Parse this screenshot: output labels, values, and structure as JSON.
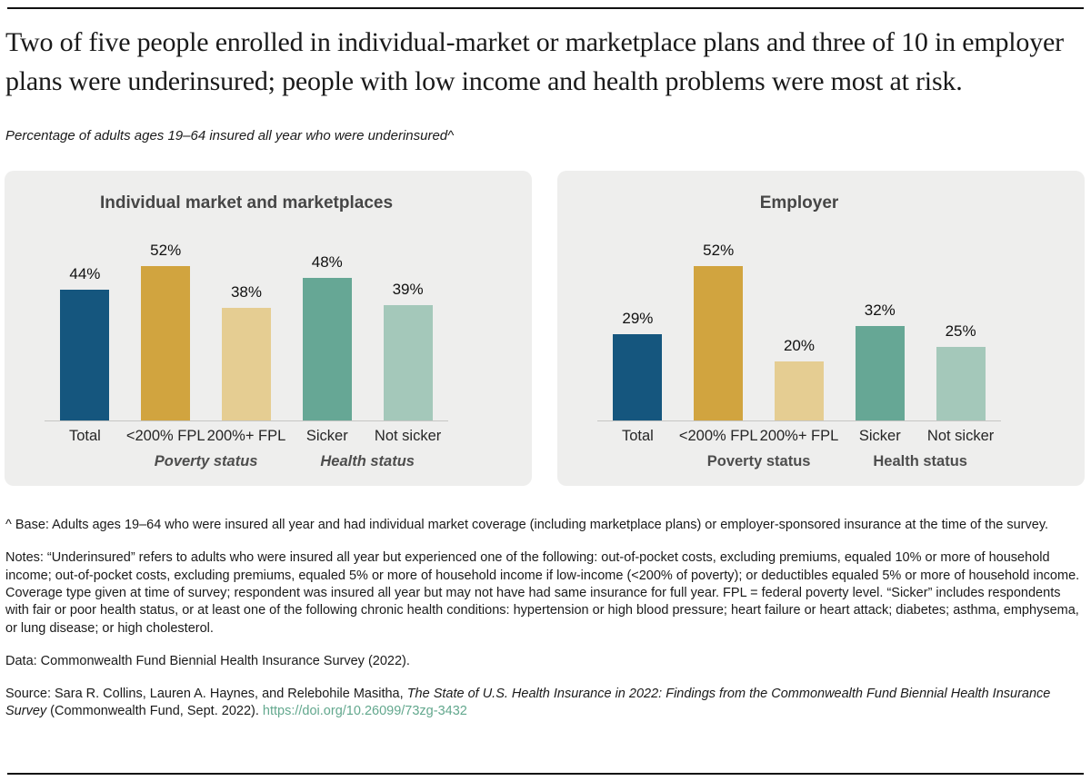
{
  "header": {
    "title": "Two of five people enrolled in individual-market or marketplace plans and three of 10 in employer plans were underinsured; people with low income and health problems were most at risk.",
    "subtitle": "Percentage of adults ages 19–64 insured all year who were underinsured^"
  },
  "colors": {
    "blue": "#15567E",
    "gold": "#D1A43F",
    "tan": "#E5CD92",
    "teal": "#66A795",
    "sage": "#A4C8BA",
    "panel_bg": "#EEEEED",
    "axis": "#C6C6C4",
    "link": "#63A88E",
    "rule": "#111111"
  },
  "chart_data": [
    {
      "type": "bar",
      "title": "Individual market and marketplaces",
      "categories": [
        "Total",
        "<200% FPL",
        "200%+ FPL",
        "Sicker",
        "Not sicker"
      ],
      "values": [
        44,
        52,
        38,
        48,
        39
      ],
      "value_labels": [
        "44%",
        "52%",
        "38%",
        "48%",
        "39%"
      ],
      "bar_colors": [
        "#15567E",
        "#D1A43F",
        "#E5CD92",
        "#66A795",
        "#A4C8BA"
      ],
      "group_labels": [
        {
          "label": "",
          "span": 1
        },
        {
          "label": "Poverty status",
          "span": 2
        },
        {
          "label": "Health status",
          "span": 2
        }
      ],
      "group_label_italic": true,
      "ylim": [
        0,
        60
      ],
      "grid": false,
      "legend": "none",
      "xlabel": "",
      "ylabel": ""
    },
    {
      "type": "bar",
      "title": "Employer",
      "categories": [
        "Total",
        "<200% FPL",
        "200%+ FPL",
        "Sicker",
        "Not sicker"
      ],
      "values": [
        29,
        52,
        20,
        32,
        25
      ],
      "value_labels": [
        "29%",
        "52%",
        "20%",
        "32%",
        "25%"
      ],
      "bar_colors": [
        "#15567E",
        "#D1A43F",
        "#E5CD92",
        "#66A795",
        "#A4C8BA"
      ],
      "group_labels": [
        {
          "label": "",
          "span": 1
        },
        {
          "label": "Poverty status",
          "span": 2
        },
        {
          "label": "Health status",
          "span": 2
        }
      ],
      "group_label_italic": false,
      "ylim": [
        0,
        60
      ],
      "grid": false,
      "legend": "none",
      "xlabel": "",
      "ylabel": ""
    }
  ],
  "footnotes": {
    "base": "^ Base: Adults ages 19–64 who were insured all year and had individual market coverage (including marketplace plans) or employer-sponsored insurance at the time of the survey.",
    "notes": "Notes: “Underinsured” refers to adults who were insured all year but experienced one of the following: out-of-pocket costs, excluding premiums, equaled 10% or more of household income; out-of-pocket costs, excluding premiums, equaled 5% or more of household income if low-income (<200% of poverty); or deductibles equaled 5% or more of household income. Coverage type given at time of survey; respondent was insured all year but may not have had same insurance for full year. FPL = federal poverty level. “Sicker” includes respondents with fair or poor health status, or at least one of the following chronic health conditions: hypertension or high blood pressure; heart failure or heart attack; diabetes; asthma, emphysema, or lung disease; or high cholesterol.",
    "data": "Data: Commonwealth Fund Biennial Health Insurance Survey (2022).",
    "source_prefix": "Source: Sara R. Collins, Lauren A. Haynes, and Relebohile Masitha, ",
    "source_italic": "The State of U.S. Health Insurance in 2022: Findings from the Commonwealth Fund Biennial Health Insurance Survey",
    "source_suffix": " (Commonwealth Fund, Sept. 2022). ",
    "source_link": "https://doi.org/10.26099/73zg-3432"
  }
}
